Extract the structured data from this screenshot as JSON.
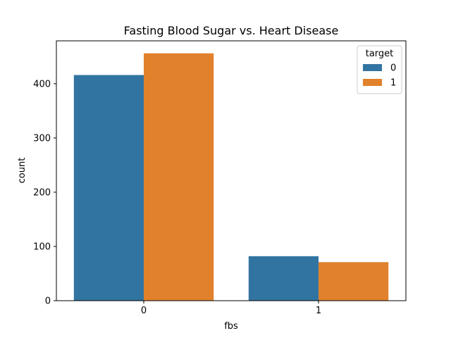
{
  "chart_data": {
    "type": "bar",
    "title": "Fasting Blood Sugar vs. Heart Disease",
    "xlabel": "fbs",
    "ylabel": "count",
    "categories": [
      "0",
      "1"
    ],
    "series": [
      {
        "name": "0",
        "values": [
          416,
          82
        ],
        "color": "#3274a1"
      },
      {
        "name": "1",
        "values": [
          456,
          71
        ],
        "color": "#e1812c"
      }
    ],
    "yticks": [
      0,
      100,
      200,
      300,
      400
    ],
    "ylim": [
      0,
      479
    ],
    "grid": false,
    "legend": {
      "title": "target",
      "placement": "top-right"
    }
  }
}
